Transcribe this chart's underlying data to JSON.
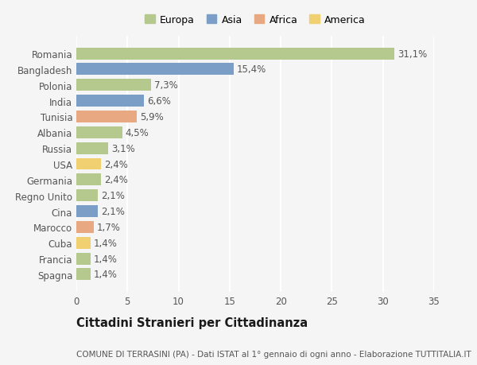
{
  "categories": [
    "Romania",
    "Bangladesh",
    "Polonia",
    "India",
    "Tunisia",
    "Albania",
    "Russia",
    "USA",
    "Germania",
    "Regno Unito",
    "Cina",
    "Marocco",
    "Cuba",
    "Francia",
    "Spagna"
  ],
  "values": [
    31.1,
    15.4,
    7.3,
    6.6,
    5.9,
    4.5,
    3.1,
    2.4,
    2.4,
    2.1,
    2.1,
    1.7,
    1.4,
    1.4,
    1.4
  ],
  "labels": [
    "31,1%",
    "15,4%",
    "7,3%",
    "6,6%",
    "5,9%",
    "4,5%",
    "3,1%",
    "2,4%",
    "2,4%",
    "2,1%",
    "2,1%",
    "1,7%",
    "1,4%",
    "1,4%",
    "1,4%"
  ],
  "continents": [
    "Europa",
    "Asia",
    "Europa",
    "Asia",
    "Africa",
    "Europa",
    "Europa",
    "America",
    "Europa",
    "Europa",
    "Asia",
    "Africa",
    "America",
    "Europa",
    "Europa"
  ],
  "colors": {
    "Europa": "#b5c98e",
    "Asia": "#7b9ec7",
    "Africa": "#e8a882",
    "America": "#f0d070"
  },
  "legend_order": [
    "Europa",
    "Asia",
    "Africa",
    "America"
  ],
  "xlim": [
    0,
    35
  ],
  "xticks": [
    0,
    5,
    10,
    15,
    20,
    25,
    30,
    35
  ],
  "title": "Cittadini Stranieri per Cittadinanza",
  "subtitle": "COMUNE DI TERRASINI (PA) - Dati ISTAT al 1° gennaio di ogni anno - Elaborazione TUTTITALIA.IT",
  "background_color": "#f5f5f5",
  "bar_height": 0.75,
  "label_fontsize": 8.5,
  "axis_label_fontsize": 8.5,
  "title_fontsize": 10.5,
  "subtitle_fontsize": 7.5
}
